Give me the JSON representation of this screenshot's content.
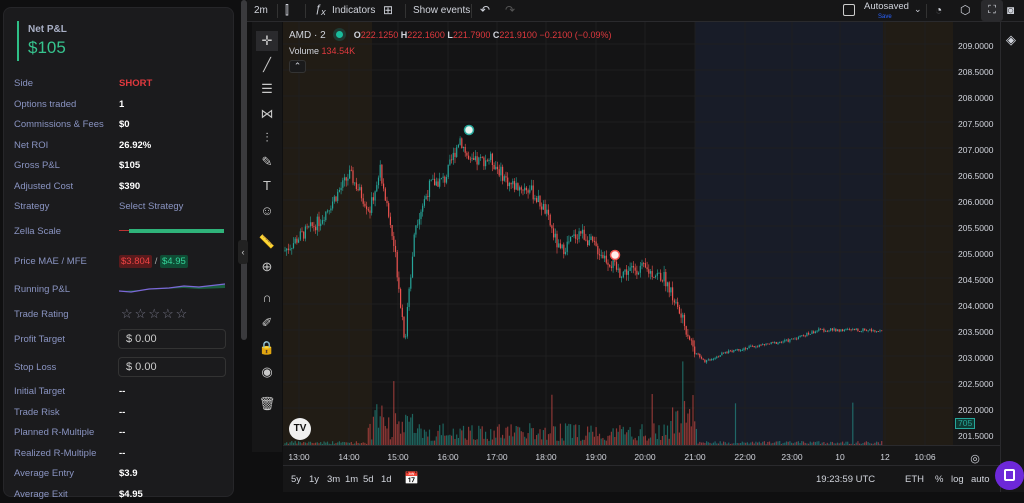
{
  "panel": {
    "net_label": "Net P&L",
    "net_value": "$105",
    "rows": [
      {
        "k": "Side",
        "v": "SHORT"
      },
      {
        "k": "Options traded",
        "v": "1"
      },
      {
        "k": "Commissions & Fees",
        "v": "$0"
      },
      {
        "k": "Net ROI",
        "v": "26.92%"
      },
      {
        "k": "Gross P&L",
        "v": "$105"
      },
      {
        "k": "Adjusted Cost",
        "v": "$390"
      },
      {
        "k": "Strategy",
        "v": "Select Strategy"
      }
    ],
    "zella_label": "Zella Scale",
    "mae_label": "Price MAE / MFE",
    "mae": "$3.804",
    "slash": "/",
    "mfe": "$4.95",
    "running_label": "Running P&L",
    "rating_label": "Trade Rating",
    "rating": 0,
    "profit_label": "Profit Target",
    "profit_value": "$  0.00",
    "stop_label": "Stop Loss",
    "stop_value": "$  0.00",
    "rows2": [
      {
        "k": "Initial Target",
        "v": "--"
      },
      {
        "k": "Trade Risk",
        "v": "--"
      },
      {
        "k": "Planned R-Multiple",
        "v": "--"
      },
      {
        "k": "Realized R-Multiple",
        "v": "--"
      },
      {
        "k": "Average Entry",
        "v": "$3.9"
      },
      {
        "k": "Average Exit",
        "v": "$4.95"
      }
    ]
  },
  "toolbar": {
    "interval": "2m",
    "indicators": "Indicators",
    "show_events": "Show events",
    "autosaved": "Autosaved",
    "save": "Save"
  },
  "legend": {
    "symbol": "AMD · 2",
    "o": "222.1250",
    "h": "222.1600",
    "l": "221.7900",
    "c": "221.9100",
    "chg": "−0.2100 (−0.09%)",
    "volume_label": "Volume",
    "volume": "134.54K"
  },
  "colors": {
    "up": "#26a69a",
    "down": "#ef5350",
    "accent": "#2fbf87"
  },
  "chart_data": {
    "type": "candlestick",
    "ylim": [
      201.5,
      209.25
    ],
    "price_ticks": [
      "209.0000",
      "208.5000",
      "208.0000",
      "207.5000",
      "207.0000",
      "206.5000",
      "206.0000",
      "205.5000",
      "205.0000",
      "204.5000",
      "204.0000",
      "203.5000",
      "203.0000",
      "202.5000",
      "202.0000",
      "201.5000"
    ],
    "time_ticks": [
      "13:00",
      "14:00",
      "15:00",
      "16:00",
      "17:00",
      "18:00",
      "19:00",
      "20:00",
      "21:00",
      "22:00",
      "23:00",
      "10",
      "12",
      "10:06"
    ],
    "path": [
      [
        12.68,
        205
      ],
      [
        13.02,
        205.3
      ],
      [
        13.42,
        205.6
      ],
      [
        14.03,
        206.5
      ],
      [
        14.43,
        205.8
      ],
      [
        14.64,
        206.6
      ],
      [
        14.94,
        205
      ],
      [
        15.14,
        203.3
      ],
      [
        15.34,
        205.5
      ],
      [
        15.65,
        206.3
      ],
      [
        15.95,
        206.4
      ],
      [
        16.25,
        207.2
      ],
      [
        16.45,
        206.7
      ],
      [
        16.86,
        206.8
      ],
      [
        17.26,
        206.3
      ],
      [
        17.67,
        206.2
      ],
      [
        17.97,
        205.8
      ],
      [
        18.27,
        205
      ],
      [
        18.68,
        205.4
      ],
      [
        19.08,
        205
      ],
      [
        19.48,
        204.6
      ],
      [
        19.89,
        204.7
      ],
      [
        20.39,
        204.5
      ],
      [
        20.7,
        203.8
      ],
      [
        21.0,
        203.1
      ],
      [
        21.2,
        202.9
      ],
      [
        21.7,
        203.1
      ],
      [
        22.9,
        203.3
      ],
      [
        23.5,
        203.5
      ],
      [
        24.7,
        203.5
      ]
    ],
    "volume_badge": "705"
  },
  "bottom": {
    "ranges": [
      "5y",
      "1y",
      "3m",
      "1m",
      "5d",
      "1d"
    ],
    "clock": "19:23:59 UTC",
    "session": "ETH",
    "pct": "%",
    "log": "log",
    "auto": "auto"
  }
}
